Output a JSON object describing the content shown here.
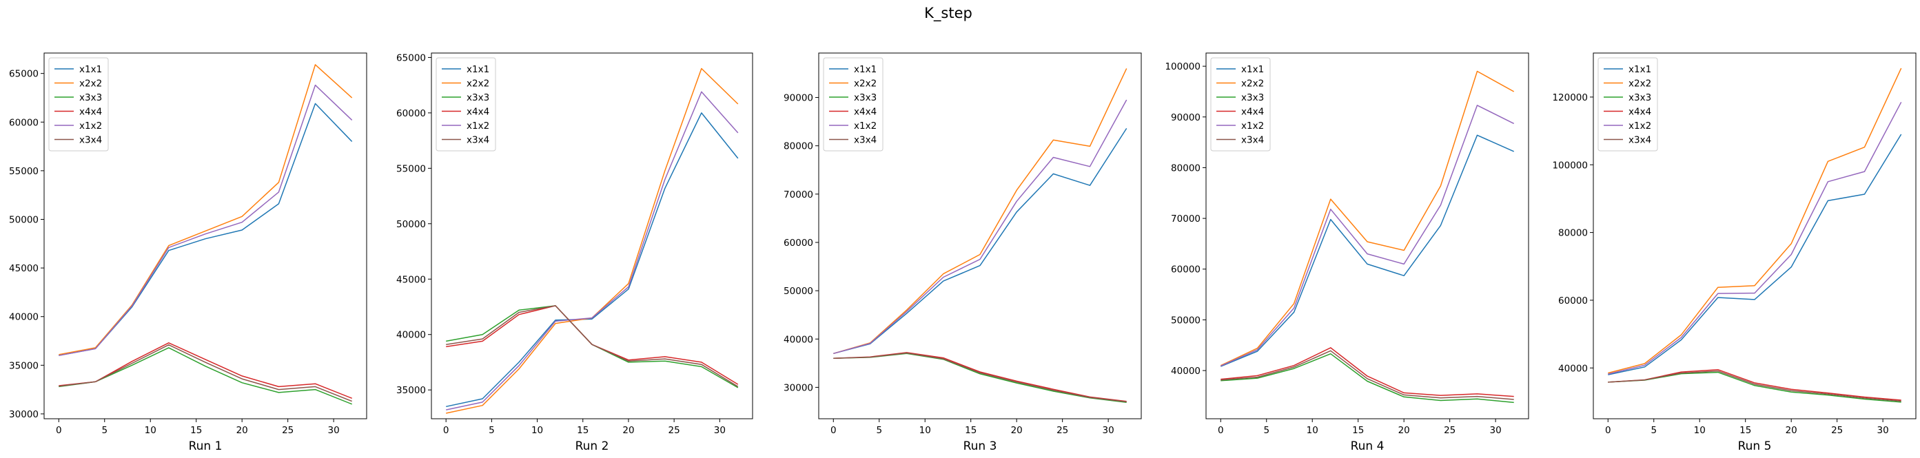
{
  "title": "K_step",
  "legend_labels": [
    "x1x1",
    "x2x2",
    "x3x3",
    "x4x4",
    "x1x2",
    "x3x4"
  ],
  "series_colors": {
    "x1x1": "#1f77b4",
    "x2x2": "#ff7f0e",
    "x3x3": "#2ca02c",
    "x4x4": "#d62728",
    "x1x2": "#9467bd",
    "x3x4": "#8c564b"
  },
  "chart_data": [
    {
      "type": "line",
      "xlabel": "Run 1",
      "ylabel": "",
      "legend_location": "upper-left",
      "grid": false,
      "x": [
        0,
        4,
        8,
        12,
        16,
        20,
        24,
        28,
        32
      ],
      "xticks": [
        0,
        5,
        10,
        15,
        20,
        25,
        30
      ],
      "xlim": [
        -1.6,
        33.6
      ],
      "ylim": [
        29500,
        67100
      ],
      "yticks": [
        30000,
        35000,
        40000,
        45000,
        50000,
        55000,
        60000,
        65000
      ],
      "series": [
        {
          "name": "x1x1",
          "values": [
            36000,
            36700,
            41000,
            46800,
            48000,
            48900,
            51600,
            61900,
            58000
          ]
        },
        {
          "name": "x2x2",
          "values": [
            36100,
            36800,
            41200,
            47300,
            48800,
            50300,
            53800,
            65900,
            62500
          ]
        },
        {
          "name": "x3x3",
          "values": [
            32800,
            33300,
            35000,
            36800,
            34900,
            33200,
            32200,
            32500,
            31000
          ]
        },
        {
          "name": "x4x4",
          "values": [
            32900,
            33300,
            35400,
            37300,
            35600,
            33900,
            32800,
            33100,
            31600
          ]
        },
        {
          "name": "x1x2",
          "values": [
            36000,
            36700,
            41100,
            47100,
            48500,
            49700,
            52800,
            63800,
            60200
          ]
        },
        {
          "name": "x3x4",
          "values": [
            32850,
            33300,
            35200,
            37100,
            35300,
            33600,
            32500,
            32800,
            31300
          ]
        }
      ]
    },
    {
      "type": "line",
      "xlabel": "Run 2",
      "ylabel": "",
      "legend_location": "upper-left",
      "grid": false,
      "x": [
        0,
        4,
        8,
        12,
        16,
        20,
        24,
        28,
        32
      ],
      "xticks": [
        0,
        5,
        10,
        15,
        20,
        25,
        30
      ],
      "xlim": [
        -1.6,
        33.6
      ],
      "ylim": [
        32400,
        65400
      ],
      "yticks": [
        35000,
        40000,
        45000,
        50000,
        55000,
        60000,
        65000
      ],
      "series": [
        {
          "name": "x1x1",
          "values": [
            33500,
            34200,
            37500,
            41300,
            41400,
            44100,
            53200,
            60000,
            55900
          ]
        },
        {
          "name": "x2x2",
          "values": [
            32900,
            33600,
            36900,
            41000,
            41500,
            44600,
            54800,
            64000,
            60800
          ]
        },
        {
          "name": "x3x3",
          "values": [
            39400,
            40000,
            42200,
            42600,
            39100,
            37500,
            37600,
            37100,
            35200
          ]
        },
        {
          "name": "x4x4",
          "values": [
            38900,
            39400,
            41800,
            42600,
            39100,
            37700,
            38000,
            37500,
            35500
          ]
        },
        {
          "name": "x1x2",
          "values": [
            33200,
            33900,
            37200,
            41200,
            41500,
            44300,
            54000,
            61900,
            58200
          ]
        },
        {
          "name": "x3x4",
          "values": [
            39100,
            39600,
            42000,
            42600,
            39100,
            37600,
            37800,
            37300,
            35300
          ]
        }
      ]
    },
    {
      "type": "line",
      "xlabel": "Run 3",
      "ylabel": "",
      "legend_location": "upper-left",
      "grid": false,
      "x": [
        0,
        4,
        8,
        12,
        16,
        20,
        24,
        28,
        32
      ],
      "xticks": [
        0,
        5,
        10,
        15,
        20,
        25,
        30
      ],
      "xlim": [
        -1.6,
        33.6
      ],
      "ylim": [
        23500,
        99200
      ],
      "yticks": [
        30000,
        40000,
        50000,
        60000,
        70000,
        80000,
        90000
      ],
      "series": [
        {
          "name": "x1x1",
          "values": [
            37000,
            39000,
            45300,
            52000,
            55200,
            66300,
            74200,
            71800,
            83600
          ]
        },
        {
          "name": "x2x2",
          "values": [
            37000,
            39200,
            46000,
            53500,
            57500,
            70800,
            81200,
            79900,
            96000
          ]
        },
        {
          "name": "x3x3",
          "values": [
            36000,
            36200,
            37000,
            35800,
            32800,
            30900,
            29200,
            27800,
            26900
          ]
        },
        {
          "name": "x4x4",
          "values": [
            36000,
            36300,
            37200,
            36100,
            33200,
            31300,
            29600,
            28000,
            27100
          ]
        },
        {
          "name": "x1x2",
          "values": [
            37000,
            39100,
            45700,
            52800,
            56500,
            68500,
            77600,
            75700,
            89500
          ]
        },
        {
          "name": "x3x4",
          "values": [
            36000,
            36250,
            37100,
            35900,
            33000,
            31100,
            29400,
            27900,
            27000
          ]
        }
      ]
    },
    {
      "type": "line",
      "xlabel": "Run 4",
      "ylabel": "",
      "legend_location": "upper-left",
      "grid": false,
      "x": [
        0,
        4,
        8,
        12,
        16,
        20,
        24,
        28,
        32
      ],
      "xticks": [
        0,
        5,
        10,
        15,
        20,
        25,
        30
      ],
      "xlim": [
        -1.6,
        33.6
      ],
      "ylim": [
        30500,
        102600
      ],
      "yticks": [
        40000,
        50000,
        60000,
        70000,
        80000,
        90000,
        100000
      ],
      "series": [
        {
          "name": "x1x1",
          "values": [
            40800,
            43800,
            51500,
            69800,
            61000,
            58700,
            68600,
            86400,
            83200
          ]
        },
        {
          "name": "x2x2",
          "values": [
            41000,
            44400,
            53200,
            73800,
            65400,
            63700,
            76400,
            99000,
            95000
          ]
        },
        {
          "name": "x3x3",
          "values": [
            38000,
            38500,
            40400,
            43300,
            37900,
            34800,
            34100,
            34400,
            33700
          ]
        },
        {
          "name": "x4x4",
          "values": [
            38300,
            39000,
            41000,
            44500,
            38900,
            35600,
            35100,
            35400,
            34900
          ]
        },
        {
          "name": "x1x2",
          "values": [
            40900,
            44100,
            52300,
            71800,
            63000,
            61000,
            72600,
            92300,
            88700
          ]
        },
        {
          "name": "x3x4",
          "values": [
            38150,
            38700,
            40700,
            43900,
            38400,
            35200,
            34600,
            34900,
            34300
          ]
        }
      ]
    },
    {
      "type": "line",
      "xlabel": "Run 5",
      "ylabel": "",
      "legend_location": "upper-left",
      "grid": false,
      "x": [
        0,
        4,
        8,
        12,
        16,
        20,
        24,
        28,
        32
      ],
      "xticks": [
        0,
        5,
        10,
        15,
        20,
        25,
        30
      ],
      "xlim": [
        -1.6,
        33.6
      ],
      "ylim": [
        25000,
        133000
      ],
      "yticks": [
        40000,
        60000,
        80000,
        100000,
        120000
      ],
      "series": [
        {
          "name": "x1x1",
          "values": [
            38000,
            40300,
            48300,
            60800,
            60200,
            69800,
            89400,
            91300,
            109000
          ]
        },
        {
          "name": "x2x2",
          "values": [
            38500,
            41300,
            49800,
            63800,
            64300,
            76700,
            101000,
            105200,
            128500
          ]
        },
        {
          "name": "x3x3",
          "values": [
            35800,
            36400,
            38300,
            38700,
            34800,
            32900,
            32000,
            30800,
            29900
          ]
        },
        {
          "name": "x4x4",
          "values": [
            35800,
            36500,
            38800,
            39500,
            35600,
            33700,
            32600,
            31400,
            30500
          ]
        },
        {
          "name": "x1x2",
          "values": [
            38200,
            40800,
            49000,
            62000,
            62100,
            73500,
            95000,
            98000,
            118500
          ]
        },
        {
          "name": "x3x4",
          "values": [
            35800,
            36450,
            38500,
            39100,
            35200,
            33300,
            32300,
            31100,
            30200
          ]
        }
      ]
    }
  ]
}
